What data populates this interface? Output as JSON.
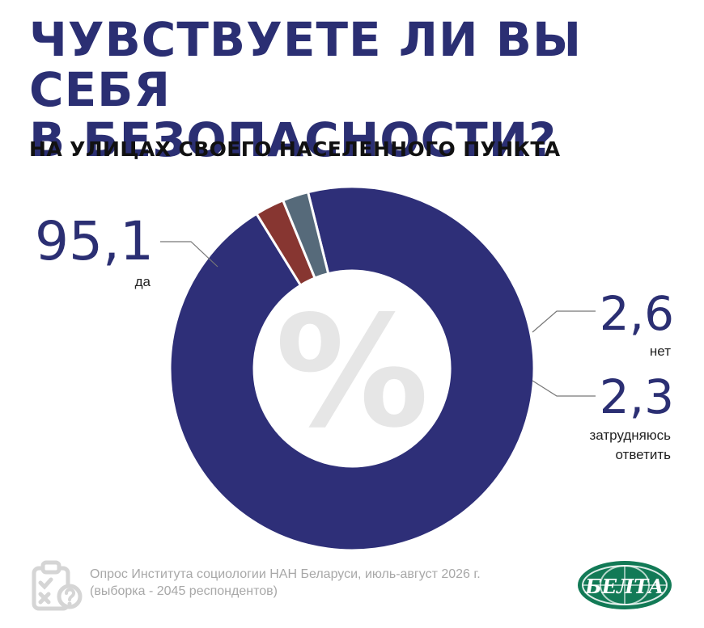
{
  "header": {
    "title_line1": "ЧУВСТВУЕТЕ ЛИ ВЫ СЕБЯ",
    "title_line2": "В БЕЗОПАСНОСТИ?",
    "subtitle": "НА УЛИЦАХ СВОЕГО НАСЕЛЕННОГО ПУНКТА"
  },
  "chart_data": {
    "type": "pie",
    "title": "ЧУВСТВУЕТЕ ЛИ ВЫ СЕБЯ В БЕЗОПАСНОСТИ?",
    "subtitle": "НА УЛИЦАХ СВОЕГО НАСЕЛЕННОГО ПУНКТА",
    "unit": "%",
    "center_label": "%",
    "categories": [
      "да",
      "нет",
      "затрудняюсь ответить"
    ],
    "values": [
      95.1,
      2.6,
      2.3
    ],
    "value_labels": [
      "95,1",
      "2,6",
      "2,3"
    ],
    "label_lines": [
      [
        "да"
      ],
      [
        "нет"
      ],
      [
        "затрудняюсь",
        "ответить"
      ]
    ],
    "colors": [
      "#2e2f78",
      "#873631",
      "#566a7a"
    ],
    "label_color": "#2b2f73"
  },
  "footer": {
    "source_line1": "Опрос Института социологии НАН Беларуси, июль-август 2026 г.",
    "source_line2": "(выборка - 2045 респондентов)",
    "logo_text": "БЕЛТА"
  }
}
